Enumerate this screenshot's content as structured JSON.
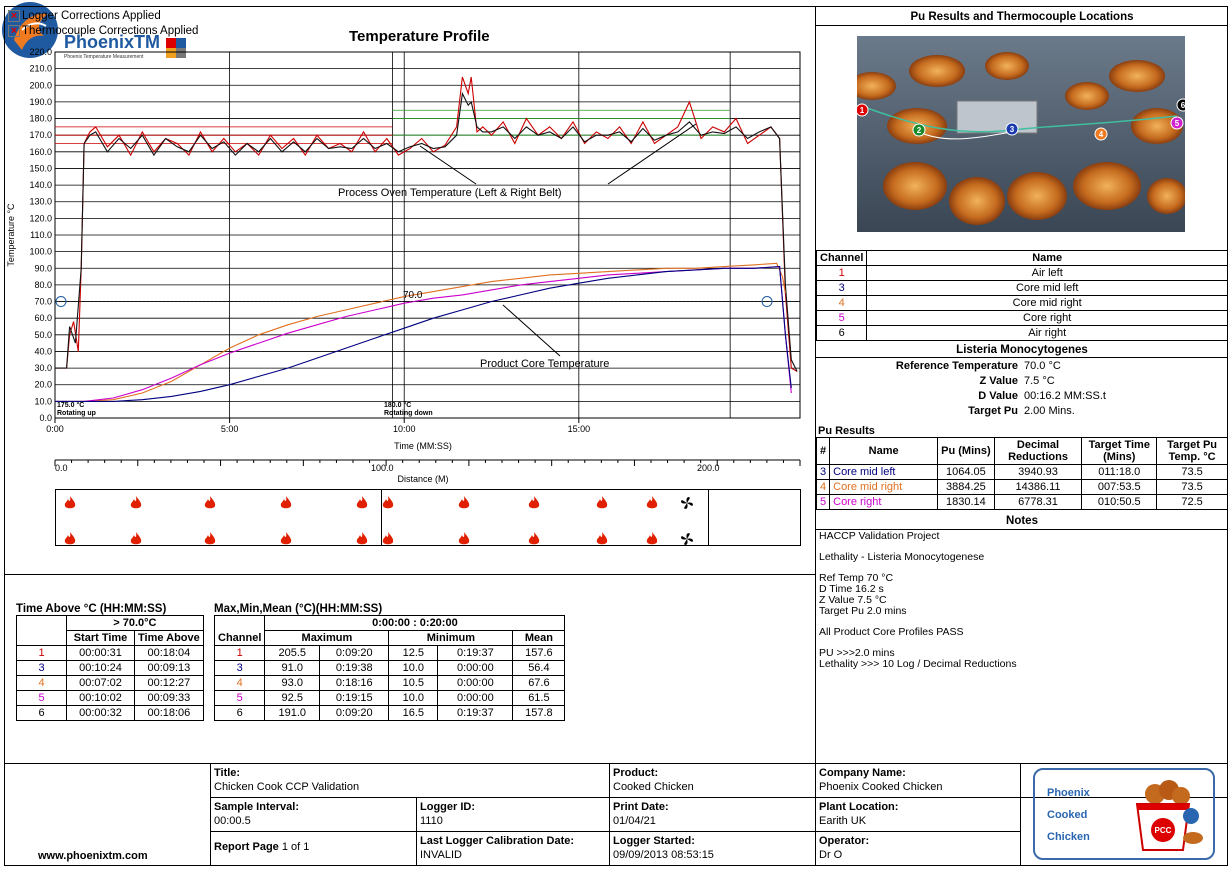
{
  "flags": [
    "Logger Corrections Applied",
    "Thermocouple Corrections Applied"
  ],
  "chart_data": {
    "type": "line",
    "title": "Temperature Profile",
    "xlabel": "Time (MM:SS)",
    "ylabel": "Temperature °C",
    "ylim": [
      0,
      220
    ],
    "xlim_seconds": [
      0,
      1280
    ],
    "x_ticks": [
      "0:00",
      "5:00",
      "10:00",
      "15:00"
    ],
    "y_ticks": [
      "0.0",
      "10.0",
      "20.0",
      "30.0",
      "40.0",
      "50.0",
      "60.0",
      "70.0",
      "80.0",
      "90.0",
      "100.0",
      "110.0",
      "120.0",
      "130.0",
      "140.0",
      "150.0",
      "160.0",
      "170.0",
      "180.0",
      "190.0",
      "200.0",
      "210.0",
      "220.0"
    ],
    "distance_label": "Distance (M)",
    "distance_ticks": [
      "0.0",
      "100.0",
      "200.0"
    ],
    "annotations": {
      "oven": "Process Oven Temperature (Left & Right Belt)",
      "core": "Product Core Temperature",
      "ref": "70.0",
      "zone1_temp": "175.0 °C",
      "zone1_note": "Rotating up",
      "zone2_temp": "180.0 °C",
      "zone2_note": "Rotating down"
    },
    "series": [
      {
        "color": "#cc0000",
        "x": [
          0,
          20,
          25,
          32,
          40,
          45,
          50,
          60,
          70,
          90,
          110,
          130,
          150,
          170,
          190,
          210,
          230,
          250,
          270,
          290,
          310,
          330,
          350,
          370,
          390,
          410,
          430,
          450,
          470,
          490,
          510,
          530,
          550,
          570,
          590,
          610,
          630,
          650,
          670,
          690,
          700,
          710,
          715,
          725,
          735,
          750,
          770,
          790,
          810,
          830,
          850,
          870,
          890,
          910,
          930,
          950,
          970,
          990,
          1010,
          1030,
          1050,
          1070,
          1090,
          1110,
          1130,
          1150,
          1170,
          1190,
          1210,
          1230,
          1245,
          1255,
          1265,
          1275
        ],
        "y": [
          30,
          30,
          50,
          58,
          40,
          90,
          165,
          172,
          175,
          163,
          170,
          158,
          172,
          160,
          168,
          165,
          158,
          172,
          160,
          168,
          160,
          165,
          158,
          170,
          162,
          168,
          158,
          170,
          162,
          165,
          160,
          172,
          160,
          168,
          158,
          162,
          168,
          160,
          164,
          175,
          205,
          195,
          205,
          172,
          175,
          170,
          178,
          165,
          180,
          170,
          175,
          168,
          178,
          165,
          172,
          168,
          175,
          165,
          178,
          165,
          170,
          175,
          190,
          168,
          175,
          172,
          180,
          165,
          170,
          175,
          168,
          75,
          30,
          28
        ]
      },
      {
        "color": "#111111",
        "x": [
          0,
          20,
          25,
          35,
          45,
          50,
          60,
          70,
          90,
          110,
          130,
          150,
          170,
          190,
          210,
          230,
          250,
          270,
          290,
          310,
          330,
          350,
          370,
          390,
          410,
          430,
          450,
          470,
          490,
          510,
          530,
          550,
          570,
          590,
          610,
          630,
          650,
          670,
          690,
          700,
          710,
          715,
          725,
          735,
          750,
          770,
          790,
          810,
          830,
          850,
          870,
          890,
          910,
          930,
          950,
          970,
          990,
          1010,
          1030,
          1050,
          1070,
          1090,
          1110,
          1130,
          1150,
          1170,
          1190,
          1210,
          1230,
          1245,
          1255,
          1265,
          1275
        ],
        "y": [
          30,
          30,
          55,
          45,
          90,
          165,
          170,
          172,
          160,
          168,
          162,
          170,
          158,
          168,
          163,
          160,
          170,
          162,
          166,
          158,
          165,
          160,
          168,
          160,
          166,
          160,
          168,
          162,
          163,
          162,
          168,
          162,
          165,
          160,
          163,
          165,
          162,
          163,
          170,
          195,
          188,
          190,
          175,
          172,
          172,
          175,
          168,
          175,
          170,
          172,
          168,
          175,
          166,
          170,
          170,
          172,
          166,
          174,
          167,
          170,
          172,
          178,
          170,
          172,
          171,
          175,
          168,
          172,
          175,
          168,
          80,
          35,
          28
        ]
      },
      {
        "color": "#e07020",
        "x": [
          0,
          50,
          100,
          150,
          200,
          250,
          300,
          350,
          400,
          450,
          500,
          550,
          600,
          650,
          700,
          750,
          800,
          850,
          900,
          950,
          1000,
          1050,
          1100,
          1150,
          1200,
          1240,
          1250,
          1255
        ],
        "y": [
          10,
          10,
          11,
          15,
          22,
          32,
          42,
          50,
          56,
          61,
          65,
          69,
          73,
          76,
          79,
          82,
          84,
          86,
          87,
          88,
          89,
          90,
          90,
          91,
          92,
          93,
          85,
          75
        ]
      },
      {
        "color": "#cc00cc",
        "x": [
          0,
          50,
          100,
          150,
          200,
          250,
          300,
          350,
          400,
          450,
          500,
          550,
          600,
          650,
          700,
          750,
          800,
          850,
          900,
          950,
          1000,
          1050,
          1100,
          1150,
          1200,
          1245,
          1255,
          1265
        ],
        "y": [
          10,
          10,
          12,
          17,
          24,
          32,
          39,
          45,
          51,
          56,
          61,
          65,
          69,
          72,
          74,
          77,
          80,
          82,
          84,
          86,
          87,
          88,
          89,
          90,
          90,
          91,
          50,
          15
        ]
      },
      {
        "color": "#000080",
        "x": [
          0,
          50,
          100,
          150,
          200,
          250,
          300,
          350,
          400,
          450,
          500,
          550,
          600,
          650,
          700,
          750,
          800,
          850,
          900,
          950,
          1000,
          1050,
          1100,
          1150,
          1200,
          1245,
          1255,
          1265
        ],
        "y": [
          10,
          10,
          10,
          11,
          13,
          16,
          20,
          25,
          30,
          36,
          42,
          48,
          54,
          60,
          65,
          70,
          74,
          78,
          81,
          84,
          86,
          88,
          89,
          90,
          90,
          91,
          50,
          18
        ]
      }
    ]
  },
  "pu_panel": {
    "title": "Pu Results and Thermocouple Locations",
    "photo_markers": [
      "1",
      "2",
      "3",
      "4",
      "5",
      "6"
    ],
    "channel_header": {
      "c": "Channel",
      "n": "Name"
    },
    "channels": [
      {
        "c": "1",
        "n": "Air left",
        "color": "#cc0000"
      },
      {
        "c": "3",
        "n": "Core mid left",
        "color": "#000080"
      },
      {
        "c": "4",
        "n": "Core mid right",
        "color": "#e07020"
      },
      {
        "c": "5",
        "n": "Core right",
        "color": "#cc00cc"
      },
      {
        "c": "6",
        "n": "Air right",
        "color": "#000000"
      }
    ],
    "listeria_title": "Listeria Monocytogenes",
    "listeria": [
      {
        "k": "Reference Temperature",
        "v": "70.0 °C"
      },
      {
        "k": "Z Value",
        "v": "7.5 °C"
      },
      {
        "k": "D Value",
        "v": "00:16.2 MM:SS.t"
      },
      {
        "k": "Target Pu",
        "v": "2.00 Mins."
      }
    ],
    "results_title": "Pu Results",
    "results_header": [
      "#",
      "Name",
      "Pu (Mins)",
      "Decimal Reductions",
      "Target Time (Mins)",
      "Target Pu Temp. °C"
    ],
    "results": [
      {
        "n": "3",
        "name": "Core mid left",
        "pu": "1064.05",
        "dr": "3940.93",
        "tt": "011:18.0",
        "tp": "73.5",
        "color": "#000080"
      },
      {
        "n": "4",
        "name": "Core mid right",
        "pu": "3884.25",
        "dr": "14386.11",
        "tt": "007:53.5",
        "tp": "73.5",
        "color": "#e07020"
      },
      {
        "n": "5",
        "name": "Core right",
        "pu": "1830.14",
        "dr": "6778.31",
        "tt": "010:50.5",
        "tp": "72.5",
        "color": "#cc00cc"
      }
    ],
    "notes_title": "Notes",
    "notes": [
      "HACCP Validation Project",
      "",
      "Lethality - Listeria Monocytogenese",
      "",
      "Ref Temp 70 °C",
      "D Time 16.2 s",
      "Z Value 7.5 °C",
      "Target Pu 2.0 mins",
      "",
      "All Product Core Profiles PASS",
      "",
      "PU >>>2.0 mins",
      "Lethality >>> 10 Log / Decimal Reductions"
    ]
  },
  "time_above": {
    "title": "Time Above °C (HH:MM:SS)",
    "threshold": "> 70.0°C",
    "cols": [
      "Start Time",
      "Time Above"
    ],
    "rows": [
      {
        "c": "1",
        "s": "00:00:31",
        "t": "00:18:04",
        "color": "#cc0000"
      },
      {
        "c": "3",
        "s": "00:10:24",
        "t": "00:09:13",
        "color": "#000080"
      },
      {
        "c": "4",
        "s": "00:07:02",
        "t": "00:12:27",
        "color": "#e07020"
      },
      {
        "c": "5",
        "s": "00:10:02",
        "t": "00:09:33",
        "color": "#cc00cc"
      },
      {
        "c": "6",
        "s": "00:00:32",
        "t": "00:18:06",
        "color": "#000000"
      }
    ]
  },
  "maxmin": {
    "title": "Max,Min,Mean (°C)(HH:MM:SS)",
    "range": "0:00:00 : 0:20:00",
    "cols": [
      "Channel",
      "Maximum",
      "Minimum",
      "Mean"
    ],
    "rows": [
      {
        "c": "1",
        "max": "205.5",
        "maxt": "0:09:20",
        "min": "12.5",
        "mint": "0:19:37",
        "mean": "157.6",
        "color": "#cc0000"
      },
      {
        "c": "3",
        "max": "91.0",
        "maxt": "0:19:38",
        "min": "10.0",
        "mint": "0:00:00",
        "mean": "56.4",
        "color": "#000080"
      },
      {
        "c": "4",
        "max": "93.0",
        "maxt": "0:18:16",
        "min": "10.5",
        "mint": "0:00:00",
        "mean": "67.6",
        "color": "#e07020"
      },
      {
        "c": "5",
        "max": "92.5",
        "maxt": "0:19:15",
        "min": "10.0",
        "mint": "0:00:00",
        "mean": "61.5",
        "color": "#cc00cc"
      },
      {
        "c": "6",
        "max": "191.0",
        "maxt": "0:09:20",
        "min": "16.5",
        "mint": "0:19:37",
        "mean": "157.8",
        "color": "#000000"
      }
    ]
  },
  "footer": {
    "logo_text": "PhoenixTM",
    "logo_sub": "Phoenix Temperature Measurement",
    "website": "www.phoenixtm.com",
    "title_l": "Title:",
    "title_v": "Chicken Cook CCP Validation",
    "product_l": "Product:",
    "product_v": "Cooked Chicken",
    "company_l": "Company Name:",
    "company_v": "Phoenix Cooked Chicken",
    "interval_l": "Sample Interval:",
    "interval_v": "00:00.5",
    "logger_l": "Logger ID:",
    "logger_v": "1110",
    "print_l": "Print Date:",
    "print_v": "01/04/21",
    "plant_l": "Plant Location:",
    "plant_v": "Earith UK",
    "report_l": "Report Page",
    "report_v": "1 of 1",
    "calib_l": "Last Logger Calibration Date:",
    "calib_v": "INVALID",
    "started_l": "Logger Started:",
    "started_v": "09/09/2013 08:53:15",
    "operator_l": "Operator:",
    "operator_v": "Dr O",
    "brand": [
      "Phoenix",
      "Cooked",
      "Chicken"
    ],
    "brand_badge": "PCC"
  }
}
